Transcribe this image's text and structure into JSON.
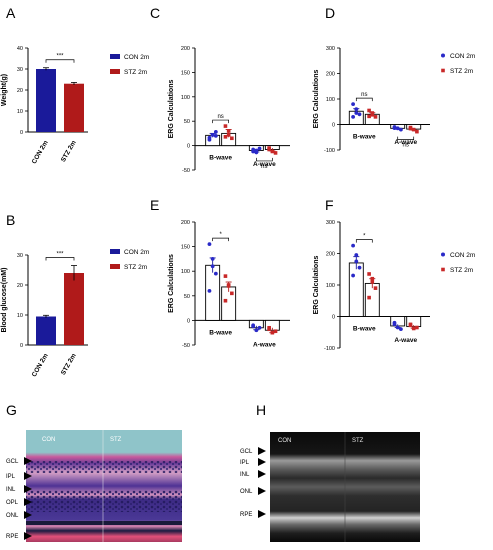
{
  "colors": {
    "con": "#1a1a9a",
    "stz": "#b01a1a",
    "con_dot": "#2a2ac8",
    "stz_dot": "#c82828",
    "axis": "#000000"
  },
  "chart_data": [
    {
      "panel": "A",
      "type": "bar",
      "categories": [
        "CON 2m",
        "STZ 2m"
      ],
      "values": [
        30,
        23
      ],
      "errors": [
        0.6,
        0.6
      ],
      "ylabel": "Weight(g)",
      "yticks": [
        0,
        10,
        20,
        30,
        40
      ],
      "ylim": [
        0,
        40
      ],
      "significance": "***",
      "legend": [
        "CON 2m",
        "STZ 2m"
      ]
    },
    {
      "panel": "B",
      "type": "bar",
      "categories": [
        "CON 2m",
        "STZ 2m"
      ],
      "values": [
        9.5,
        24
      ],
      "errors": [
        0.4,
        2.5
      ],
      "ylabel": "Blood glucose(mM)",
      "yticks": [
        0,
        10,
        20,
        30
      ],
      "ylim": [
        0,
        30
      ],
      "significance": "***",
      "legend": [
        "CON 2m",
        "STZ 2m"
      ]
    },
    {
      "panel": "C",
      "type": "bar",
      "categories": [
        "B-wave",
        "A-wave"
      ],
      "ylabel": "ERG Calculations",
      "yticks": [
        -50,
        0,
        50,
        100,
        150,
        200
      ],
      "ylim": [
        -50,
        200
      ],
      "significance": [
        "ns",
        "ns"
      ],
      "series": [
        {
          "name": "CON 2m",
          "values": [
            21,
            -10
          ],
          "errors": [
            4,
            3
          ],
          "points": [
            [
              16,
              22,
              28,
              12,
              22,
              20
            ],
            [
              -8,
              -14,
              -6,
              -12,
              -10
            ]
          ]
        },
        {
          "name": "STZ 2m",
          "values": [
            25,
            -8
          ],
          "errors": [
            8,
            3
          ],
          "points": [
            [
              40,
              30,
              15,
              18,
              22
            ],
            [
              -5,
              -12,
              -15,
              -8
            ]
          ]
        }
      ]
    },
    {
      "panel": "D",
      "type": "bar",
      "categories": [
        "B-wave",
        "A-wave"
      ],
      "ylabel": "ERG Calculations",
      "yticks": [
        -100,
        0,
        100,
        200,
        300
      ],
      "ylim": [
        -100,
        300
      ],
      "significance": [
        "ns",
        "ns"
      ],
      "legend": [
        "CON 2m",
        "STZ 2m"
      ],
      "series": [
        {
          "name": "CON 2m",
          "values": [
            52,
            -15
          ],
          "errors": [
            10,
            3
          ],
          "points": [
            [
              80,
              60,
              40,
              30,
              45
            ],
            [
              -10,
              -15,
              -20,
              -14
            ]
          ]
        },
        {
          "name": "STZ 2m",
          "values": [
            40,
            -18
          ],
          "errors": [
            6,
            4
          ],
          "points": [
            [
              55,
              45,
              30,
              32,
              38
            ],
            [
              -12,
              -20,
              -28,
              -16
            ]
          ]
        }
      ]
    },
    {
      "panel": "E",
      "type": "bar",
      "categories": [
        "B-wave",
        "A-wave"
      ],
      "ylabel": "ERG Calculations",
      "yticks": [
        -50,
        0,
        50,
        100,
        150,
        200
      ],
      "ylim": [
        -50,
        200
      ],
      "significance": [
        "*"
      ],
      "series": [
        {
          "name": "CON 2m",
          "values": [
            112,
            -15
          ],
          "errors": [
            15,
            4
          ],
          "points": [
            [
              155,
              125,
              95,
              60,
              110
            ],
            [
              -10,
              -20,
              -15,
              -12
            ]
          ]
        },
        {
          "name": "STZ 2m",
          "values": [
            68,
            -20
          ],
          "errors": [
            10,
            5
          ],
          "points": [
            [
              90,
              70,
              55,
              40,
              72
            ],
            [
              -15,
              -25,
              -22,
              -18
            ]
          ]
        }
      ]
    },
    {
      "panel": "F",
      "type": "bar",
      "categories": [
        "B-wave",
        "A-wave"
      ],
      "ylabel": "ERG Calculations",
      "yticks": [
        -100,
        0,
        100,
        200,
        300
      ],
      "ylim": [
        -100,
        300
      ],
      "significance": [
        "*"
      ],
      "legend": [
        "CON 2m",
        "STZ 2m"
      ],
      "series": [
        {
          "name": "CON 2m",
          "values": [
            170,
            -30
          ],
          "errors": [
            20,
            5
          ],
          "points": [
            [
              225,
              195,
              155,
              130,
              175
            ],
            [
              -20,
              -35,
              -40,
              -25
            ]
          ]
        },
        {
          "name": "STZ 2m",
          "values": [
            105,
            -32
          ],
          "errors": [
            15,
            5
          ],
          "points": [
            [
              135,
              110,
              90,
              60,
              120
            ],
            [
              -25,
              -38,
              -35,
              -28
            ]
          ]
        }
      ]
    }
  ],
  "images": {
    "G": {
      "label": "G",
      "con_label": "CON",
      "stz_label": "STZ",
      "layers": [
        "GCL",
        "IPL",
        "INL",
        "OPL",
        "ONL",
        "RPE"
      ]
    },
    "H": {
      "label": "H",
      "con_label": "CON",
      "stz_label": "STZ",
      "layers": [
        "GCL",
        "IPL",
        "INL",
        "ONL",
        "RPE"
      ]
    }
  }
}
